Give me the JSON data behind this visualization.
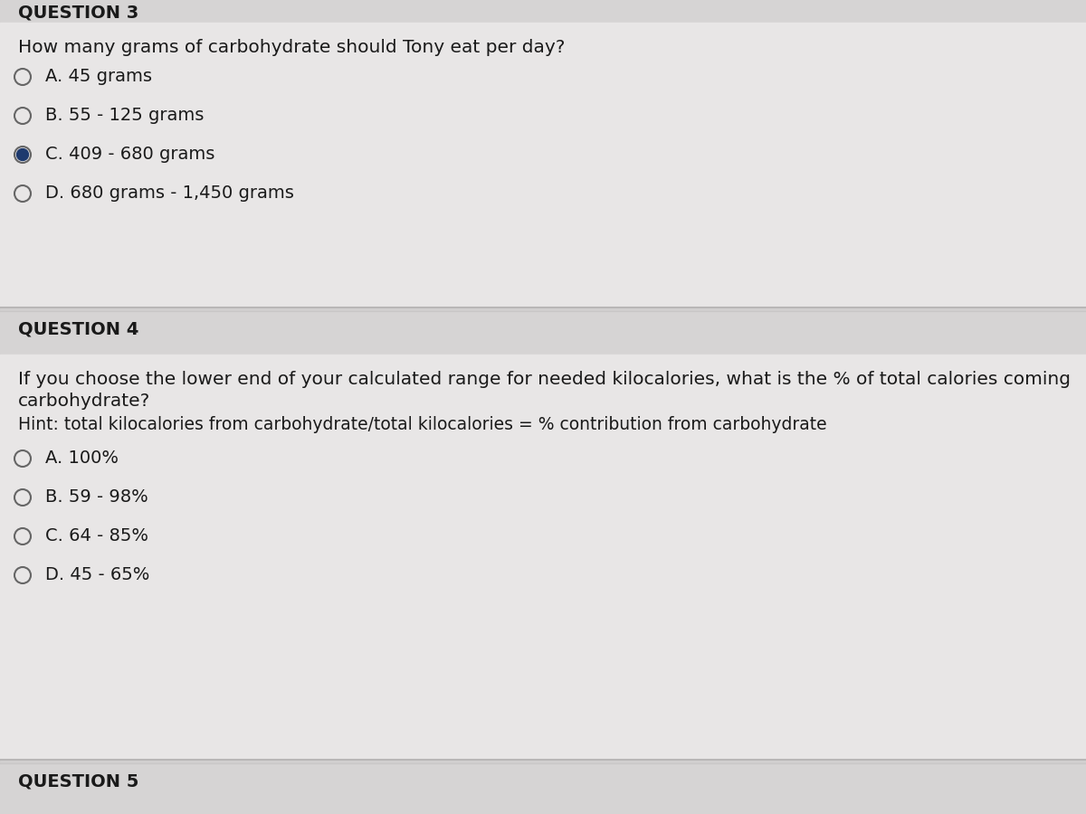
{
  "bg_color": "#d0cece",
  "body_bg": "#e8e6e6",
  "header_bg": "#d6d4d4",
  "header_top_text": "QUESTION 3",
  "q3_question": "How many grams of carbohydrate should Tony eat per day?",
  "q3_options": [
    {
      "label": "A. 45 grams",
      "selected": false
    },
    {
      "label": "B. 55 - 125 grams",
      "selected": false
    },
    {
      "label": "C. 409 - 680 grams",
      "selected": true
    },
    {
      "label": "D. 680 grams - 1,450 grams",
      "selected": false
    }
  ],
  "q4_header": "QUESTION 4",
  "q4_question_line1": "If you choose the lower end of your calculated range for needed kilocalories, what is the % of total calories coming",
  "q4_question_line2": "carbohydrate?",
  "q4_hint": "Hint: total kilocalories from carbohydrate/total kilocalories = % contribution from carbohydrate",
  "q4_options": [
    {
      "label": "A. 100%",
      "selected": false
    },
    {
      "label": "B. 59 - 98%",
      "selected": false
    },
    {
      "label": "C. 64 - 85%",
      "selected": false
    },
    {
      "label": "D. 45 - 65%",
      "selected": false
    }
  ],
  "q5_header": "QUESTION 5",
  "text_color": "#1a1a1a",
  "selected_fill": "#1e3a6e",
  "divider_color": "#b0aeae",
  "font_size_question": 14.5,
  "font_size_option": 14,
  "font_size_header": 14,
  "font_size_hint": 13.5
}
